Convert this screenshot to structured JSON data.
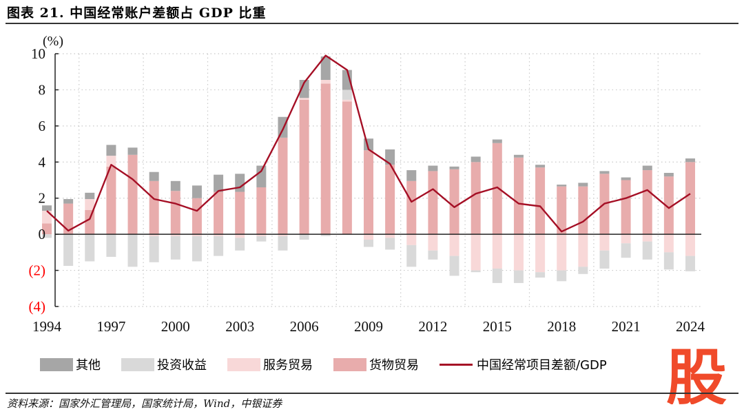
{
  "title": "图表 21. 中国经常账户差额占 GDP 比重",
  "source": "资料来源：国家外汇管理局，国家统计局，Wind，中银证券",
  "watermark": "股",
  "colors": {
    "other": "#a6a6a6",
    "investment_income": "#d9d9d9",
    "services": "#f8d8d8",
    "goods": "#e8acac",
    "line": "#a50f25",
    "negative_tick": "#ff0000",
    "watermark": "#f04a2a"
  },
  "chart_data": {
    "type": "bar",
    "subtype": "stacked-bar-with-line",
    "title": "中国经常账户差额占 GDP 比重",
    "ylabel": "(%)",
    "xlabel": "",
    "ylim": [
      -4,
      10
    ],
    "yticks": [
      10,
      8,
      6,
      4,
      2,
      0,
      -2,
      -4
    ],
    "ytick_labels": [
      "10",
      "8",
      "6",
      "4",
      "2",
      "0",
      "(2)",
      "(4)"
    ],
    "grid": true,
    "legend_position": "bottom",
    "categories": [
      1994,
      1995,
      1996,
      1997,
      1998,
      1999,
      2000,
      2001,
      2002,
      2003,
      2004,
      2005,
      2006,
      2007,
      2008,
      2009,
      2010,
      2011,
      2012,
      2013,
      2014,
      2015,
      2016,
      2017,
      2018,
      2019,
      2020,
      2021,
      2022,
      2023,
      2024
    ],
    "xtick_labels": [
      "1994",
      "1997",
      "2000",
      "2003",
      "2006",
      "2009",
      "2012",
      "2015",
      "2018",
      "2021",
      "2024"
    ],
    "series": [
      {
        "name": "货物贸易",
        "key": "goods",
        "kind": "bar",
        "values": [
          0.6,
          1.7,
          1.35,
          3.75,
          4.4,
          2.95,
          2.4,
          2.0,
          2.35,
          2.35,
          2.6,
          5.35,
          7.45,
          8.35,
          7.35,
          4.65,
          3.85,
          2.95,
          3.5,
          3.6,
          4.0,
          5.05,
          4.25,
          3.7,
          2.65,
          2.65,
          3.35,
          3.0,
          3.55,
          3.2,
          4.0
        ]
      },
      {
        "name": "服务贸易",
        "key": "services",
        "kind": "bar",
        "values": [
          0.7,
          0.0,
          0.6,
          0.6,
          0.0,
          -0.1,
          -0.1,
          -0.1,
          -0.1,
          -0.2,
          -0.1,
          -0.1,
          0.1,
          0.2,
          0.1,
          -0.3,
          -0.2,
          -0.6,
          -0.9,
          -1.2,
          -2.0,
          -1.9,
          -2.0,
          -2.1,
          -2.0,
          -1.8,
          -0.9,
          -0.5,
          -0.4,
          -1.0,
          -1.2
        ]
      },
      {
        "name": "投资收益",
        "key": "investment_income",
        "kind": "bar",
        "values": [
          -0.2,
          -1.75,
          -1.5,
          -1.25,
          -1.8,
          -1.45,
          -1.3,
          -1.4,
          -1.1,
          -0.7,
          -0.3,
          -0.8,
          -0.3,
          -0.1,
          0.55,
          -0.4,
          -0.65,
          -1.2,
          -0.5,
          -1.1,
          -0.1,
          -0.8,
          -0.7,
          -0.3,
          -0.6,
          -0.4,
          -1.0,
          -0.8,
          -1.0,
          -0.95,
          -0.85
        ]
      },
      {
        "name": "其他",
        "key": "other",
        "kind": "bar",
        "values": [
          0.3,
          0.25,
          0.35,
          0.6,
          0.4,
          0.5,
          0.55,
          0.7,
          0.95,
          1.0,
          1.2,
          1.15,
          1.0,
          1.3,
          1.1,
          0.65,
          0.85,
          0.6,
          0.3,
          0.15,
          0.3,
          0.2,
          0.15,
          0.15,
          0.1,
          0.2,
          0.15,
          0.15,
          0.25,
          0.2,
          0.2
        ]
      },
      {
        "name": "中国经常项目差额/GDP",
        "key": "line",
        "kind": "line",
        "values": [
          1.3,
          0.2,
          0.85,
          3.85,
          3.05,
          1.95,
          1.7,
          1.3,
          2.4,
          2.6,
          3.5,
          5.8,
          8.4,
          9.9,
          9.1,
          4.7,
          3.9,
          1.8,
          2.5,
          1.5,
          2.25,
          2.6,
          1.7,
          1.55,
          0.15,
          0.7,
          1.7,
          2.0,
          2.45,
          1.45,
          2.25
        ]
      }
    ],
    "legend": [
      "其他",
      "投资收益",
      "服务贸易",
      "货物贸易",
      "中国经常项目差额/GDP"
    ]
  }
}
